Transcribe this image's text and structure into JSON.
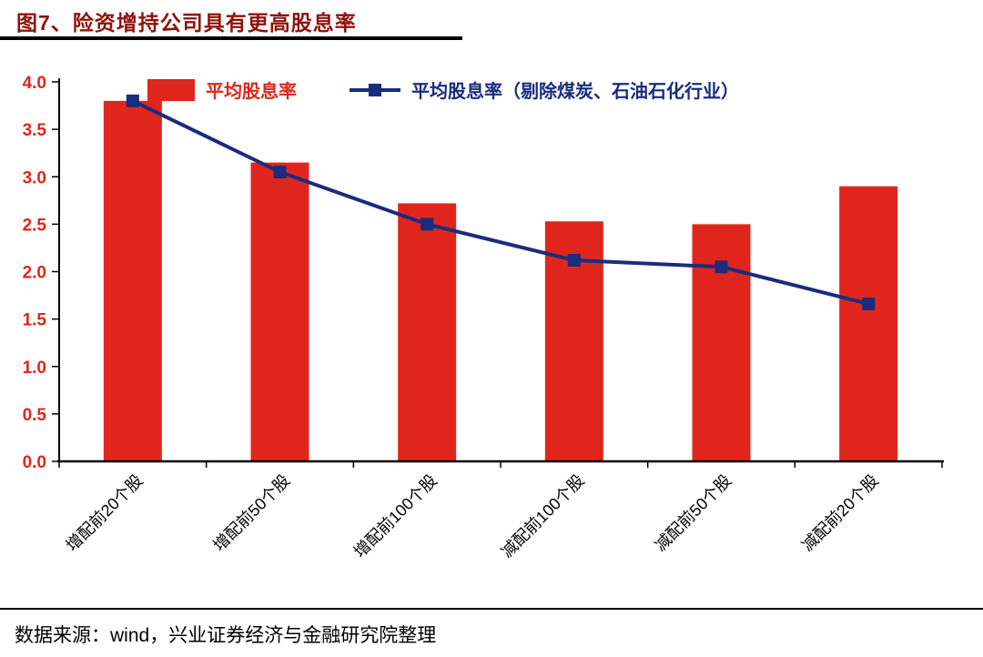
{
  "header": {
    "title": "图7、险资增持公司具有更高股息率"
  },
  "legend": {
    "bar_label": "平均股息率",
    "line_label": "平均股息率（剔除煤炭、石油石化行业）"
  },
  "footer": {
    "source": "数据来源：wind，兴业证券经济与金融研究院整理"
  },
  "colors": {
    "title": "#8E1309",
    "bar": "#E0261C",
    "line": "#1A2C7D",
    "y_tick_label": "#E0261C",
    "x_tick_label": "#000000",
    "axis": "#000000"
  },
  "chart_data": {
    "type": "bar",
    "title": "图7、险资增持公司具有更高股息率",
    "categories": [
      "增配前20个股",
      "增配前50个股",
      "增配前100个股",
      "减配前100个股",
      "减配前50个股",
      "减配前20个股"
    ],
    "series": [
      {
        "name": "平均股息率",
        "type": "bar",
        "values": [
          3.8,
          3.15,
          2.72,
          2.53,
          2.5,
          2.9
        ]
      },
      {
        "name": "平均股息率（剔除煤炭、石油石化行业）",
        "type": "line",
        "values": [
          3.8,
          3.05,
          2.5,
          2.12,
          2.05,
          1.66
        ]
      }
    ],
    "xlabel": "",
    "ylabel": "",
    "ylim": [
      0.0,
      4.0
    ],
    "ytick_step": 0.5,
    "grid": false,
    "legend_position": "top"
  }
}
